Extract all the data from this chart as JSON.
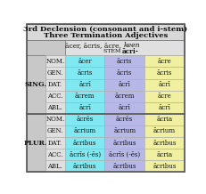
{
  "title1": "3rd Declension (consonant and i-stem)",
  "title2": "Three Termination Adjectives",
  "header_line1": "ācer, ācris, ācre, keen",
  "header_line1_plain": "ācer, ācris, ācre, ",
  "header_line1_italic": "keen",
  "stem_plain": "STEM ",
  "stem_bold": "ācri-",
  "rows": [
    [
      "SING.",
      "NOM.",
      "ācer",
      "ācris",
      "ācre"
    ],
    [
      "",
      "GEN.",
      "ācris",
      "ācris",
      "ācris"
    ],
    [
      "",
      "DAT.",
      "ācrī",
      "ācrī",
      "ācrī"
    ],
    [
      "",
      "ACC.",
      "ācrem",
      "ācrem",
      "ācre"
    ],
    [
      "",
      "ABL.",
      "ācrī",
      "ācrī",
      "ācrī"
    ],
    [
      "PLUR.",
      "NOM.",
      "ācrēs",
      "ācrēs",
      "ācria"
    ],
    [
      "",
      "GEN.",
      "ācrium",
      "ācrium",
      "ācrium"
    ],
    [
      "",
      "DAT.",
      "ācribus",
      "ācribus",
      "ācribus"
    ],
    [
      "",
      "ACC.",
      "ācrīs (-ēs)",
      "ācrīs (-ēs)",
      "ācria"
    ],
    [
      "",
      "ABL.",
      "ācribus",
      "ācribus",
      "ācribus"
    ]
  ],
  "bg_title": "#d8d8d8",
  "bg_header_left": "#c8c8c8",
  "bg_header_right": "#e0e0e0",
  "bg_masc": "#7fe8f0",
  "bg_fem": "#b8b8e8",
  "bg_neut": "#f0f0a0",
  "bg_case": "#e0e0e0",
  "bg_group": "#c8c8c8",
  "text_color": "#111111",
  "border_dark": "#777777",
  "border_light": "#aaaaaa"
}
